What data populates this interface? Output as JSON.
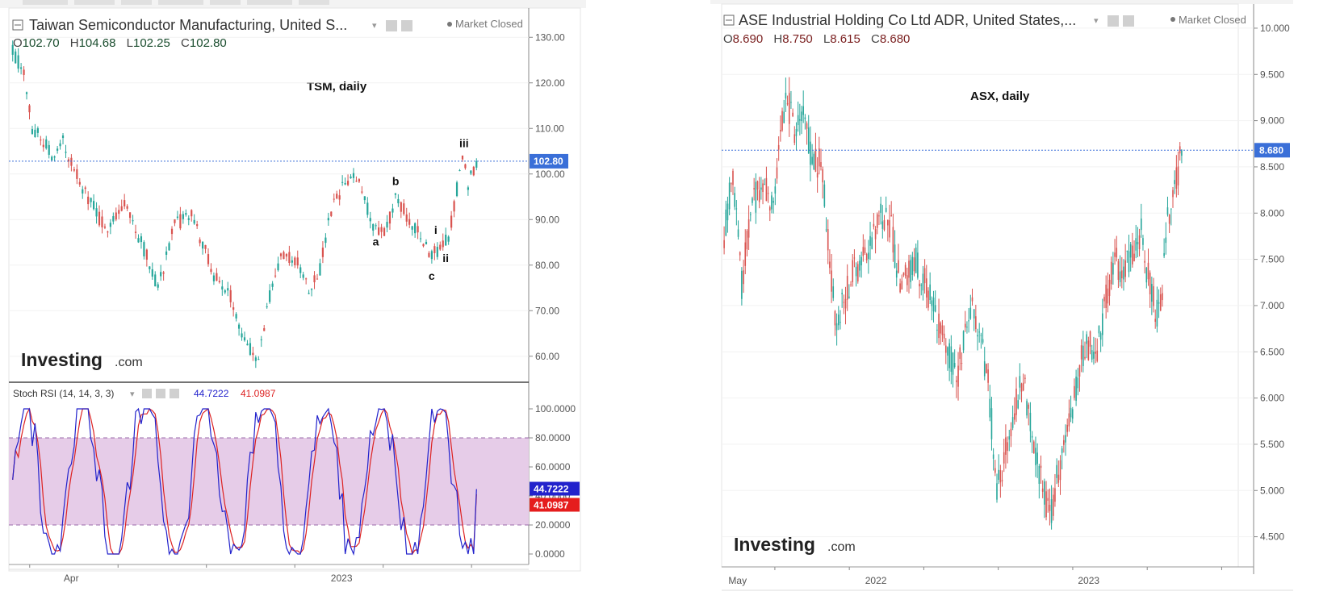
{
  "colors": {
    "up": "#26a69a",
    "down": "#d9534f",
    "stoch_k": "#2222cc",
    "stoch_d": "#dd2222",
    "stoch_band": "#e6cce8",
    "last_price": "#3a6fd8",
    "axis_text": "#555555",
    "ohlc_text": "#1a4d2e",
    "ohlc_text_right": "#7a1f1f"
  },
  "left": {
    "title": "Taiwan Semiconductor Manufacturing, United S...",
    "market_status": "Market Closed",
    "ohlc": {
      "o": "102.70",
      "h": "104.68",
      "l": "102.25",
      "c": "102.80"
    },
    "ohlc_labels": {
      "o": "O",
      "h": "H",
      "l": "L",
      "c": "C"
    },
    "chart_label": "TSM, daily",
    "last_price_label": "102.80",
    "logo": {
      "main": "Investing",
      "suffix": ".com"
    },
    "x_labels": [
      {
        "text": "Apr",
        "frac": 0.12
      },
      {
        "text": "2023",
        "frac": 0.64
      }
    ],
    "indicator": {
      "title": "Stoch RSI (14, 14, 3, 3)",
      "k_value": "44.7222",
      "d_value": "41.0987",
      "y_ticks": [
        "100.0000",
        "80.0000",
        "60.0000",
        "40.0000",
        "20.0000",
        "0.0000"
      ]
    },
    "wave_labels": [
      {
        "text": "a",
        "index": 130
      },
      {
        "text": "b",
        "index": 137
      },
      {
        "text": "c",
        "index": 150
      },
      {
        "text": "i",
        "index": 152
      },
      {
        "text": "ii",
        "index": 155
      },
      {
        "text": "iii",
        "index": 161
      }
    ]
  },
  "right": {
    "title": "ASE Industrial Holding Co Ltd ADR, United States,...",
    "market_status": "Market Closed",
    "ohlc": {
      "o": "8.690",
      "h": "8.750",
      "l": "8.615",
      "c": "8.680"
    },
    "ohlc_labels": {
      "o": "O",
      "h": "H",
      "l": "L",
      "c": "C"
    },
    "chart_label": "ASX, daily",
    "last_price_label": "8.680",
    "logo": {
      "main": "Investing",
      "suffix": ".com"
    },
    "x_labels": [
      {
        "text": "May",
        "frac": 0.03
      },
      {
        "text": "2022",
        "frac": 0.29
      },
      {
        "text": "2023",
        "frac": 0.69
      }
    ]
  },
  "chart_data": [
    {
      "type": "candlestick",
      "title": "TSM, daily",
      "ylim": [
        55,
        135
      ],
      "y_ticks": [
        60,
        70,
        80,
        90,
        100,
        110,
        120,
        130
      ],
      "last_price": 102.8,
      "anchors": [
        [
          0,
          127
        ],
        [
          4,
          122
        ],
        [
          7,
          110
        ],
        [
          10,
          108
        ],
        [
          15,
          103
        ],
        [
          18,
          107
        ],
        [
          25,
          97
        ],
        [
          33,
          88
        ],
        [
          40,
          94
        ],
        [
          48,
          82
        ],
        [
          52,
          75
        ],
        [
          58,
          89
        ],
        [
          64,
          91
        ],
        [
          72,
          78
        ],
        [
          78,
          73
        ],
        [
          84,
          62
        ],
        [
          88,
          60
        ],
        [
          92,
          73
        ],
        [
          96,
          82
        ],
        [
          102,
          81
        ],
        [
          106,
          75
        ],
        [
          110,
          79
        ],
        [
          114,
          92
        ],
        [
          119,
          98
        ],
        [
          124,
          99
        ],
        [
          129,
          88
        ],
        [
          134,
          88
        ],
        [
          137,
          95
        ],
        [
          143,
          89
        ],
        [
          150,
          82
        ],
        [
          153,
          84
        ],
        [
          156,
          86
        ],
        [
          158,
          93
        ],
        [
          161,
          104
        ],
        [
          163,
          98
        ],
        [
          166,
          102.8
        ]
      ],
      "grid": true
    },
    {
      "type": "line",
      "title": "Stoch RSI (14, 14, 3, 3)",
      "ylim": [
        -5,
        105
      ],
      "band": [
        20,
        80
      ],
      "series": [
        {
          "name": "K",
          "last": 44.7222
        },
        {
          "name": "D",
          "last": 41.0987
        }
      ]
    },
    {
      "type": "candlestick",
      "title": "ASX, daily",
      "ylim": [
        4.2,
        10.2
      ],
      "y_ticks": [
        4.5,
        5.0,
        5.5,
        6.0,
        6.5,
        7.0,
        7.5,
        8.0,
        8.5,
        9.0,
        9.5,
        10.0
      ],
      "last_price": 8.68,
      "anchors": [
        [
          0,
          7.8
        ],
        [
          5,
          8.4
        ],
        [
          10,
          7.2
        ],
        [
          15,
          8.0
        ],
        [
          20,
          8.3
        ],
        [
          28,
          8.1
        ],
        [
          35,
          9.3
        ],
        [
          40,
          8.9
        ],
        [
          45,
          9.2
        ],
        [
          50,
          8.5
        ],
        [
          55,
          8.6
        ],
        [
          60,
          7.5
        ],
        [
          63,
          6.8
        ],
        [
          68,
          7.1
        ],
        [
          75,
          7.4
        ],
        [
          82,
          7.6
        ],
        [
          90,
          8.0
        ],
        [
          95,
          7.8
        ],
        [
          100,
          7.2
        ],
        [
          108,
          7.5
        ],
        [
          115,
          7.2
        ],
        [
          122,
          6.8
        ],
        [
          128,
          6.5
        ],
        [
          132,
          6.2
        ],
        [
          136,
          6.6
        ],
        [
          141,
          7.0
        ],
        [
          146,
          6.6
        ],
        [
          150,
          6.2
        ],
        [
          155,
          5.0
        ],
        [
          160,
          5.4
        ],
        [
          165,
          5.9
        ],
        [
          170,
          6.2
        ],
        [
          175,
          5.6
        ],
        [
          180,
          5.1
        ],
        [
          185,
          4.7
        ],
        [
          190,
          5.2
        ],
        [
          195,
          5.6
        ],
        [
          200,
          6.1
        ],
        [
          205,
          6.6
        ],
        [
          212,
          6.5
        ],
        [
          217,
          7.1
        ],
        [
          222,
          7.5
        ],
        [
          227,
          7.3
        ],
        [
          232,
          7.6
        ],
        [
          237,
          7.8
        ],
        [
          240,
          7.4
        ],
        [
          243,
          7.1
        ],
        [
          246,
          6.9
        ],
        [
          249,
          7.2
        ],
        [
          252,
          7.9
        ],
        [
          256,
          8.2
        ],
        [
          260,
          8.68
        ]
      ],
      "grid": true
    }
  ]
}
